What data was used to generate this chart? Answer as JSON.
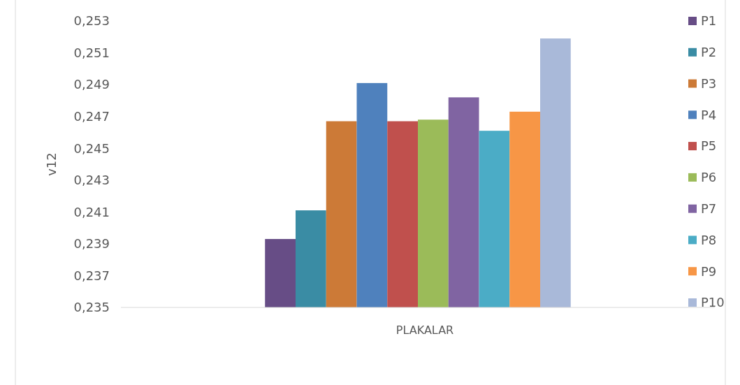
{
  "chart_data": {
    "type": "bar",
    "xlabel": "PLAKALAR",
    "ylabel": "v12",
    "categories": [
      null
    ],
    "series": [
      {
        "name": "P1",
        "color": "#674d86",
        "values": [
          0.2393
        ]
      },
      {
        "name": "P2",
        "color": "#3a8ca4",
        "values": [
          0.2411
        ]
      },
      {
        "name": "P3",
        "color": "#cc7a37",
        "values": [
          0.2467
        ]
      },
      {
        "name": "P4",
        "color": "#4f81bd",
        "values": [
          0.2491
        ]
      },
      {
        "name": "P5",
        "color": "#c0504d",
        "values": [
          0.2467
        ]
      },
      {
        "name": "P6",
        "color": "#9bbb59",
        "values": [
          0.2468
        ]
      },
      {
        "name": "P7",
        "color": "#8064a2",
        "values": [
          0.2482
        ]
      },
      {
        "name": "P8",
        "color": "#4bacc6",
        "values": [
          0.2461
        ]
      },
      {
        "name": "P9",
        "color": "#f79646",
        "values": [
          0.2473
        ]
      },
      {
        "name": "P10",
        "color": "#a9b9d9",
        "values": [
          0.2519
        ]
      }
    ],
    "ylim": [
      0.235,
      0.253
    ],
    "yticks": [
      {
        "value": 0.235,
        "label": "0,235"
      },
      {
        "value": 0.237,
        "label": "0,237"
      },
      {
        "value": 0.239,
        "label": "0,239"
      },
      {
        "value": 0.241,
        "label": "0,241"
      },
      {
        "value": 0.243,
        "label": "0,243"
      },
      {
        "value": 0.245,
        "label": "0,245"
      },
      {
        "value": 0.247,
        "label": "0,247"
      },
      {
        "value": 0.249,
        "label": "0,249"
      },
      {
        "value": 0.251,
        "label": "0,251"
      },
      {
        "value": 0.253,
        "label": "0,253"
      }
    ],
    "grid": false,
    "legend": "right"
  }
}
